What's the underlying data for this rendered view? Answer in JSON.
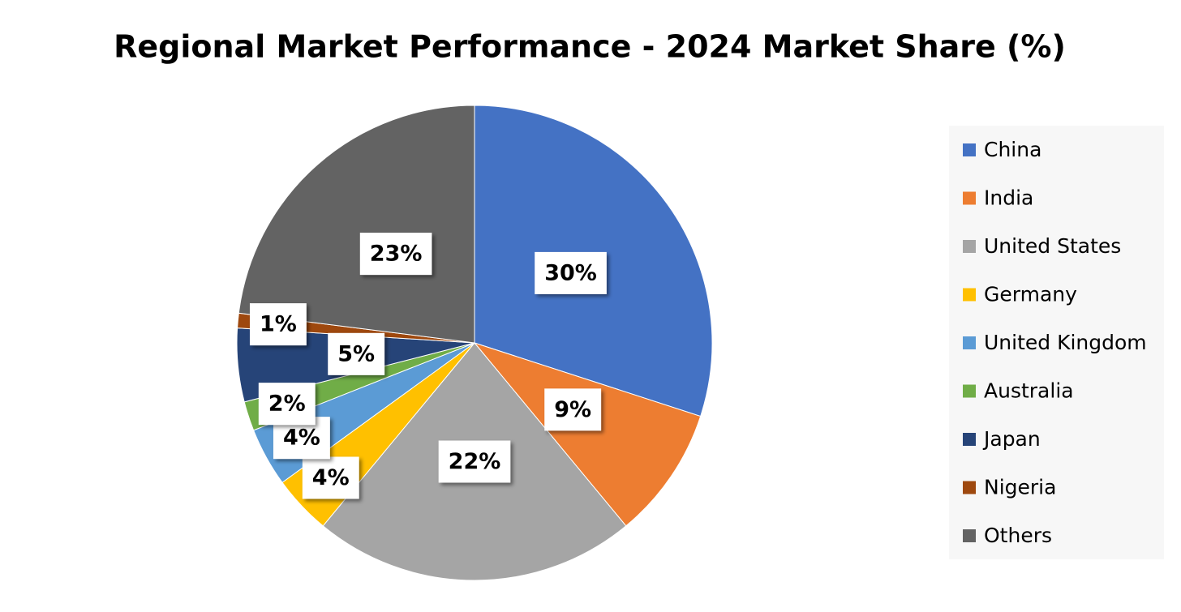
{
  "chart_data": {
    "type": "pie",
    "title": "Regional Market Performance - 2024 Market Share (%)",
    "categories": [
      "China",
      "India",
      "United States",
      "Germany",
      "United Kingdom",
      "Australia",
      "Japan",
      "Nigeria",
      "Others"
    ],
    "values": [
      30,
      9,
      22,
      4,
      4,
      2,
      5,
      1,
      23
    ],
    "value_labels": [
      "30%",
      "9%",
      "22%",
      "4%",
      "4%",
      "2%",
      "5%",
      "1%",
      "23%"
    ],
    "colors": [
      "#4472c4",
      "#ed7d31",
      "#a5a5a5",
      "#ffc000",
      "#5b9bd5",
      "#70ad47",
      "#264478",
      "#9e480e",
      "#636363"
    ],
    "legend": "right"
  }
}
